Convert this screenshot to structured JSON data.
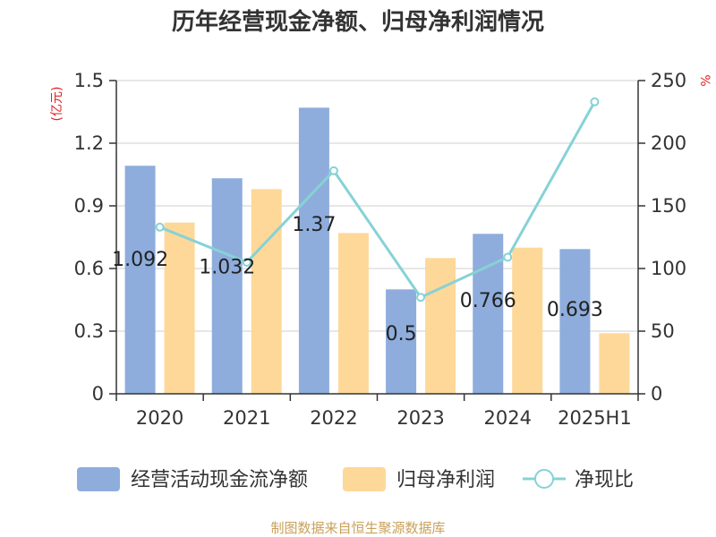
{
  "colors": {
    "bar_cash": "#8eaddc",
    "bar_profit": "#fdd899",
    "line_ratio": "#86d2d6",
    "axis_unit": "#e02020",
    "source": "#c8a15a"
  },
  "chart_data": {
    "type": "bar",
    "title": "历年经营现金净额、归母净利润情况",
    "categories": [
      "2020",
      "2021",
      "2022",
      "2023",
      "2024",
      "2025H1"
    ],
    "series": [
      {
        "name": "经营活动现金流净额",
        "type": "bar",
        "axis": "left",
        "values": [
          1.092,
          1.032,
          1.37,
          0.5,
          0.766,
          0.693
        ]
      },
      {
        "name": "归母净利润",
        "type": "bar",
        "axis": "left",
        "values": [
          0.82,
          0.98,
          0.77,
          0.65,
          0.7,
          0.29
        ]
      },
      {
        "name": "净现比",
        "type": "line",
        "axis": "right",
        "values": [
          133,
          105,
          178,
          77,
          109,
          233
        ]
      }
    ],
    "data_labels": [
      "1.092",
      "1.032",
      "1.37",
      "0.5",
      "0.766",
      "0.693"
    ],
    "y_left": {
      "label": "(亿元)",
      "ylim": [
        0,
        1.5
      ],
      "ticks": [
        "0",
        "0.3",
        "0.6",
        "0.9",
        "1.2",
        "1.5"
      ],
      "tick_values": [
        0,
        0.3,
        0.6,
        0.9,
        1.2,
        1.5
      ]
    },
    "y_right": {
      "label": "%",
      "ylim": [
        0,
        250
      ],
      "ticks": [
        "0",
        "50",
        "100",
        "150",
        "200",
        "250"
      ],
      "tick_values": [
        0,
        50,
        100,
        150,
        200,
        250
      ]
    },
    "grid": true,
    "legend_position": "bottom"
  },
  "source_text": "制图数据来自恒生聚源数据库"
}
